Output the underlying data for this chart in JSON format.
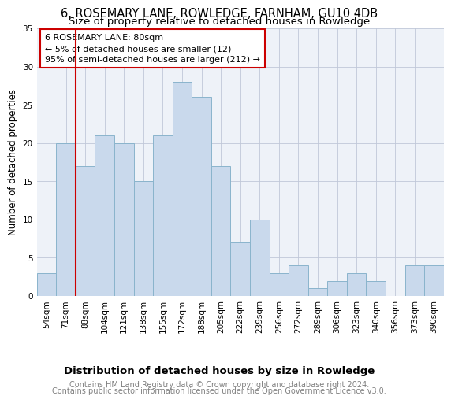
{
  "title": "6, ROSEMARY LANE, ROWLEDGE, FARNHAM, GU10 4DB",
  "subtitle": "Size of property relative to detached houses in Rowledge",
  "xlabel": "Distribution of detached houses by size in Rowledge",
  "ylabel": "Number of detached properties",
  "categories": [
    "54sqm",
    "71sqm",
    "88sqm",
    "104sqm",
    "121sqm",
    "138sqm",
    "155sqm",
    "172sqm",
    "188sqm",
    "205sqm",
    "222sqm",
    "239sqm",
    "256sqm",
    "272sqm",
    "289sqm",
    "306sqm",
    "323sqm",
    "340sqm",
    "356sqm",
    "373sqm",
    "390sqm"
  ],
  "values": [
    3,
    20,
    17,
    21,
    20,
    15,
    21,
    28,
    26,
    17,
    7,
    10,
    3,
    4,
    1,
    2,
    3,
    2,
    0,
    4,
    4
  ],
  "bar_color": "#c9d9ec",
  "bar_edge_color": "#8ab4cc",
  "vline_color": "#cc0000",
  "annotation_text": "6 ROSEMARY LANE: 80sqm\n← 5% of detached houses are smaller (12)\n95% of semi-detached houses are larger (212) →",
  "annotation_box_color": "white",
  "annotation_box_edge_color": "#cc0000",
  "ylim": [
    0,
    35
  ],
  "yticks": [
    0,
    5,
    10,
    15,
    20,
    25,
    30,
    35
  ],
  "grid_color": "#c0c8d8",
  "bg_color": "#eef2f8",
  "footer_line1": "Contains HM Land Registry data © Crown copyright and database right 2024.",
  "footer_line2": "Contains public sector information licensed under the Open Government Licence v3.0.",
  "title_fontsize": 10.5,
  "subtitle_fontsize": 9.5,
  "xlabel_fontsize": 9.5,
  "ylabel_fontsize": 8.5,
  "tick_fontsize": 7.5,
  "footer_fontsize": 7,
  "annotation_fontsize": 8
}
